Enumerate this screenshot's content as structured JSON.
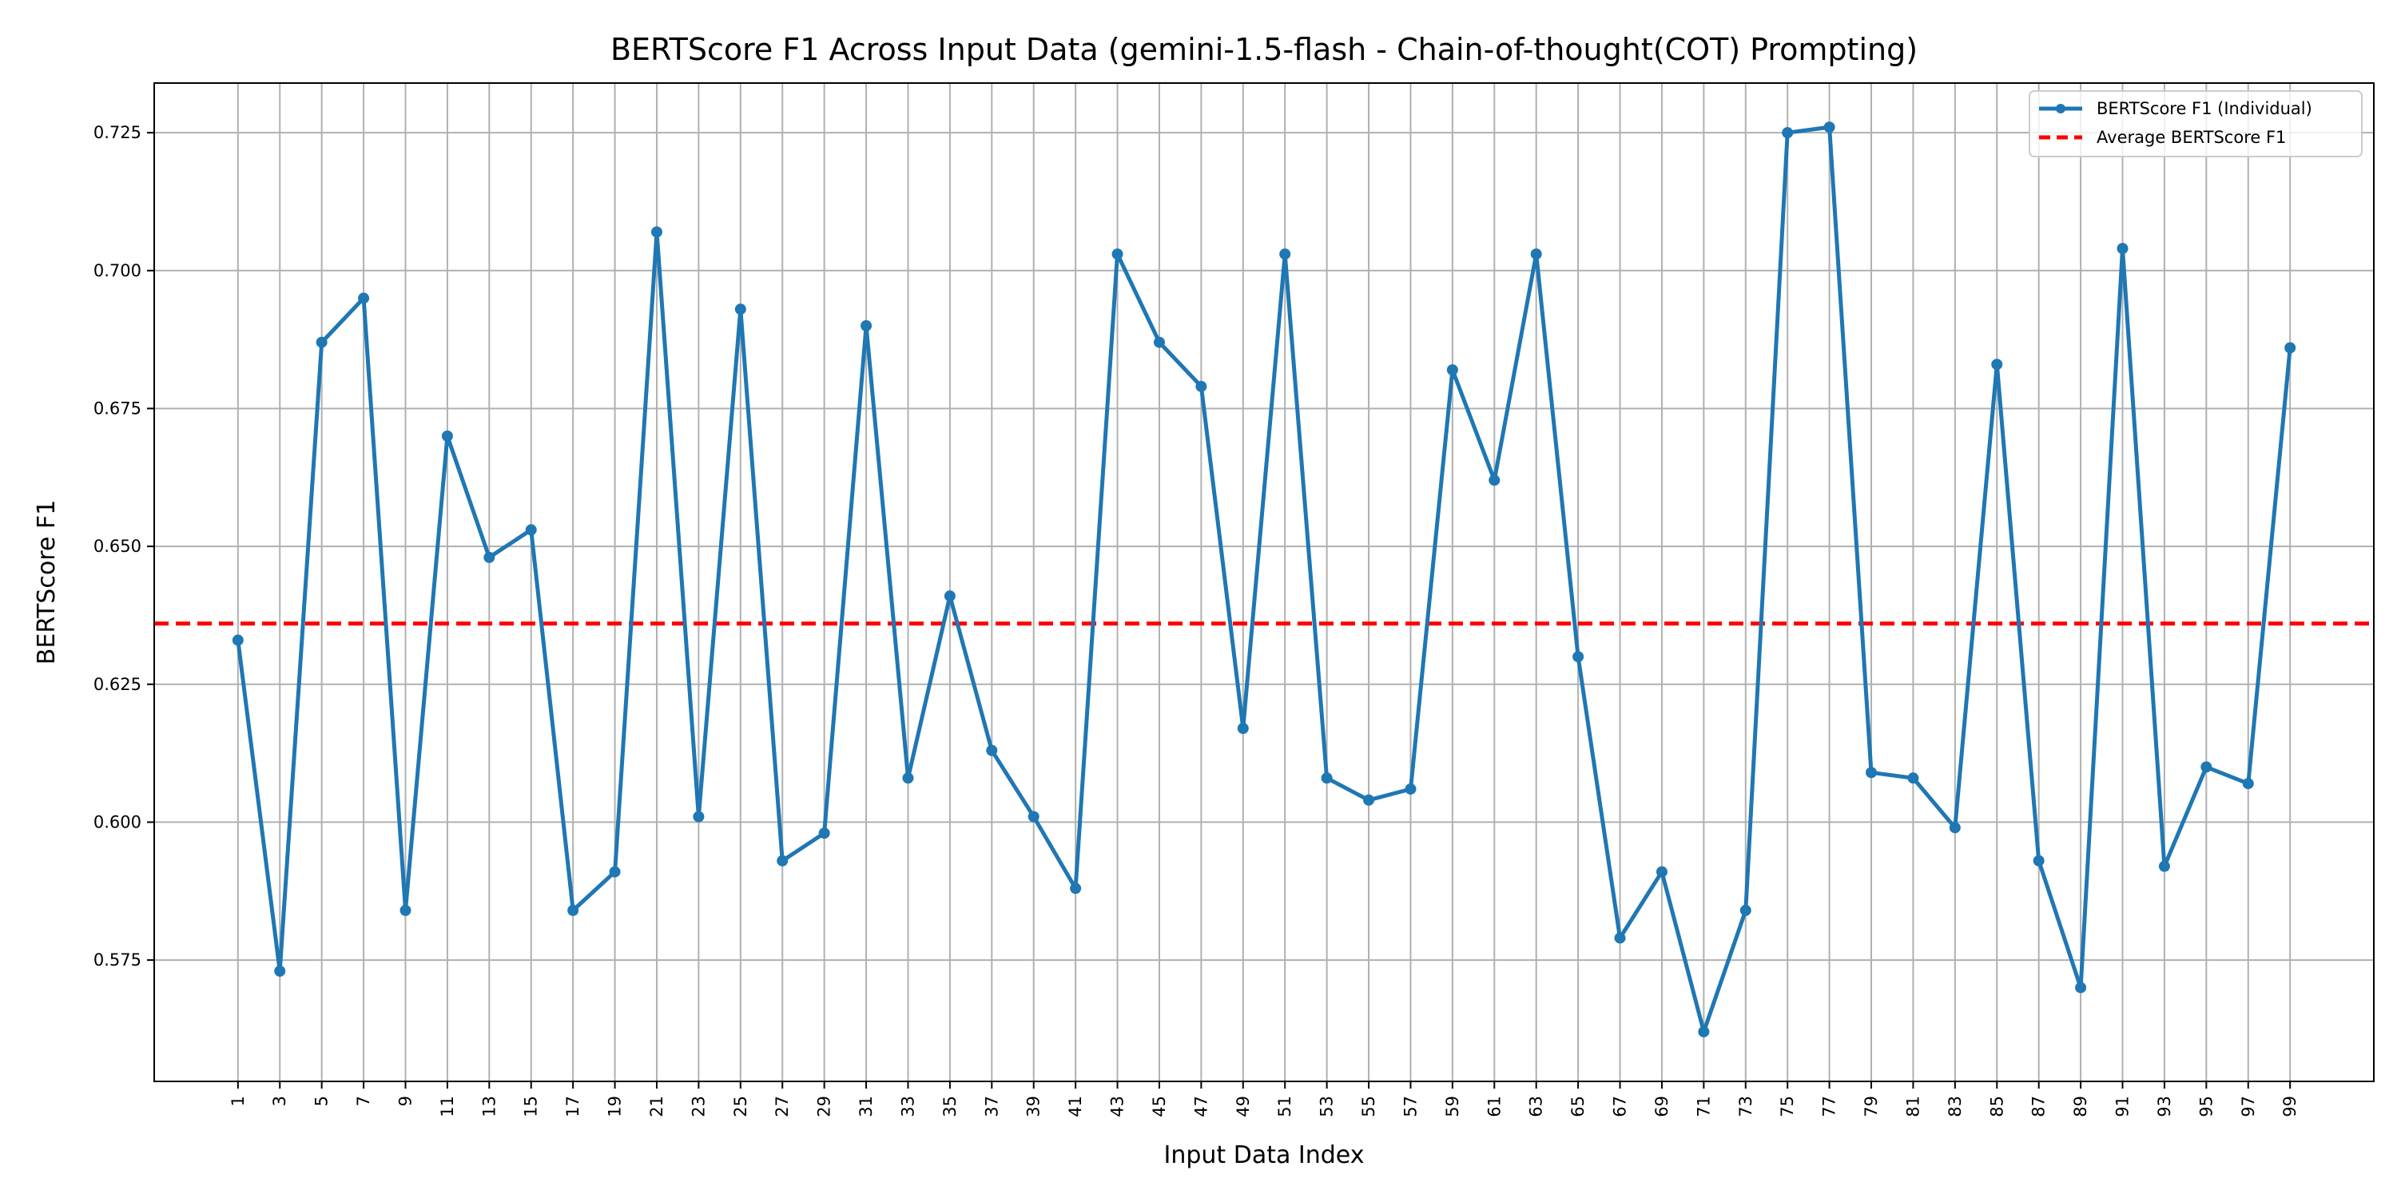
{
  "chart_data": {
    "type": "line",
    "title": "BERTScore F1 Across Input Data (gemini-1.5-flash - Chain-of-thought(COT) Prompting)",
    "xlabel": "Input Data Index",
    "ylabel": "BERTScore F1",
    "grid": true,
    "legend_position": "top-right",
    "xlim": [
      -3,
      103
    ],
    "ylim": [
      0.553,
      0.734
    ],
    "x_ticks": [
      "1",
      "3",
      "5",
      "7",
      "9",
      "11",
      "13",
      "15",
      "17",
      "19",
      "21",
      "23",
      "25",
      "27",
      "29",
      "31",
      "33",
      "35",
      "37",
      "39",
      "41",
      "43",
      "45",
      "47",
      "49",
      "51",
      "53",
      "55",
      "57",
      "59",
      "61",
      "63",
      "65",
      "67",
      "69",
      "71",
      "73",
      "75",
      "77",
      "79",
      "81",
      "83",
      "85",
      "87",
      "89",
      "91",
      "93",
      "95",
      "97",
      "99"
    ],
    "y_ticks": [
      "0.575",
      "0.600",
      "0.625",
      "0.650",
      "0.675",
      "0.700",
      "0.725"
    ],
    "series": [
      {
        "name": "BERTScore F1 (Individual)",
        "color": "#1f77b4",
        "style": "line-marker",
        "x": [
          1,
          3,
          5,
          7,
          9,
          11,
          13,
          15,
          17,
          19,
          21,
          23,
          25,
          27,
          29,
          31,
          33,
          35,
          37,
          39,
          41,
          43,
          45,
          47,
          49,
          51,
          53,
          55,
          57,
          59,
          61,
          63,
          65,
          67,
          69,
          71,
          73,
          75,
          77,
          79,
          81,
          83,
          85,
          87,
          89,
          91,
          93,
          95,
          97,
          99
        ],
        "values": [
          0.633,
          0.573,
          0.687,
          0.695,
          0.584,
          0.67,
          0.648,
          0.653,
          0.584,
          0.591,
          0.707,
          0.601,
          0.693,
          0.593,
          0.598,
          0.69,
          0.608,
          0.641,
          0.613,
          0.601,
          0.588,
          0.703,
          0.687,
          0.679,
          0.617,
          0.703,
          0.608,
          0.604,
          0.606,
          0.682,
          0.662,
          0.703,
          0.63,
          0.579,
          0.591,
          0.562,
          0.584,
          0.725,
          0.726,
          0.609,
          0.608,
          0.599,
          0.683,
          0.593,
          0.57,
          0.704,
          0.592,
          0.61,
          0.607,
          0.686
        ]
      },
      {
        "name": "Average BERTScore F1",
        "color": "#ff0000",
        "style": "dashed",
        "value": 0.636
      }
    ]
  }
}
